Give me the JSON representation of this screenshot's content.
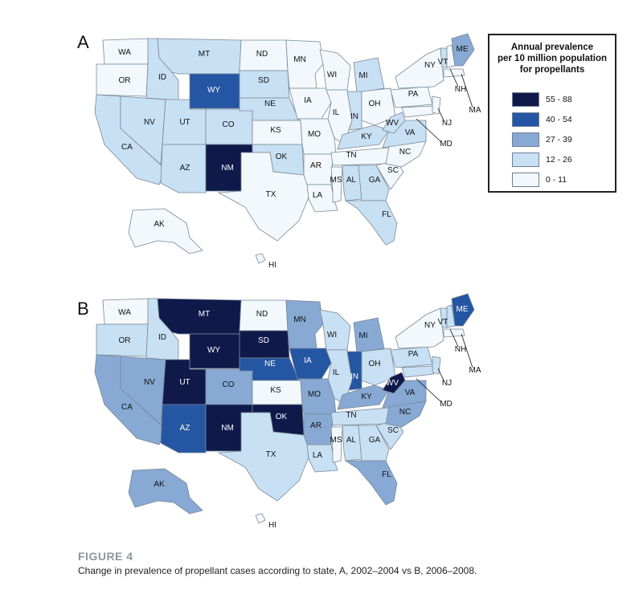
{
  "legend": {
    "title_lines": [
      "Annual prevalence",
      "per 10 million population",
      "for propellants"
    ],
    "bins": [
      {
        "label": "55 - 88",
        "color": "#0f1a4b"
      },
      {
        "label": "40 - 54",
        "color": "#2456a3"
      },
      {
        "label": "27 - 39",
        "color": "#87a9d3"
      },
      {
        "label": "12 - 26",
        "color": "#c8e0f3"
      },
      {
        "label": "0 - 11",
        "color": "#f2f8fc"
      }
    ]
  },
  "panels": [
    {
      "letter": "A",
      "states": {
        "WA": "0 - 11",
        "OR": "0 - 11",
        "ID": "12 - 26",
        "MT": "12 - 26",
        "WY": "40 - 54",
        "ND": "0 - 11",
        "SD": "12 - 26",
        "MN": "0 - 11",
        "WI": "0 - 11",
        "MI": "12 - 26",
        "IA": "0 - 11",
        "NE": "12 - 26",
        "NV": "12 - 26",
        "UT": "12 - 26",
        "CO": "12 - 26",
        "KS": "0 - 11",
        "MO": "0 - 11",
        "IL": "0 - 11",
        "IN": "12 - 26",
        "OH": "0 - 11",
        "PA": "0 - 11",
        "NY": "0 - 11",
        "CA": "12 - 26",
        "AZ": "12 - 26",
        "NM": "55 - 88",
        "OK": "12 - 26",
        "AR": "0 - 11",
        "TN": "0 - 11",
        "KY": "12 - 26",
        "WV": "12 - 26",
        "VA": "12 - 26",
        "NC": "0 - 11",
        "SC": "0 - 11",
        "GA": "12 - 26",
        "AL": "12 - 26",
        "MS": "0 - 11",
        "LA": "0 - 11",
        "TX": "0 - 11",
        "FL": "12 - 26",
        "ME": "27 - 39",
        "VT": "12 - 26",
        "NH": "0 - 11",
        "MA": "0 - 11",
        "NJ": "0 - 11",
        "MD": "0 - 11",
        "AK": "0 - 11",
        "HI": "0 - 11"
      }
    },
    {
      "letter": "B",
      "states": {
        "WA": "0 - 11",
        "OR": "12 - 26",
        "ID": "12 - 26",
        "MT": "55 - 88",
        "WY": "55 - 88",
        "ND": "0 - 11",
        "SD": "55 - 88",
        "MN": "27 - 39",
        "WI": "12 - 26",
        "MI": "27 - 39",
        "IA": "40 - 54",
        "NE": "40 - 54",
        "NV": "27 - 39",
        "UT": "55 - 88",
        "CO": "27 - 39",
        "KS": "0 - 11",
        "MO": "27 - 39",
        "IL": "12 - 26",
        "IN": "40 - 54",
        "OH": "12 - 26",
        "PA": "12 - 26",
        "NY": "0 - 11",
        "CA": "27 - 39",
        "AZ": "40 - 54",
        "NM": "55 - 88",
        "OK": "55 - 88",
        "AR": "27 - 39",
        "TN": "12 - 26",
        "KY": "27 - 39",
        "WV": "55 - 88",
        "VA": "27 - 39",
        "NC": "27 - 39",
        "SC": "12 - 26",
        "GA": "12 - 26",
        "AL": "12 - 26",
        "MS": "0 - 11",
        "LA": "12 - 26",
        "TX": "12 - 26",
        "FL": "27 - 39",
        "ME": "40 - 54",
        "VT": "12 - 26",
        "NH": "12 - 26",
        "MA": "0 - 11",
        "NJ": "12 - 26",
        "MD": "12 - 26",
        "AK": "27 - 39",
        "HI": "0 - 11"
      }
    }
  ],
  "figure": {
    "label": "FIGURE 4",
    "caption": "Change in prevalence of propellant cases according to state, A, 2002–2004 vs B, 2006–2008."
  }
}
